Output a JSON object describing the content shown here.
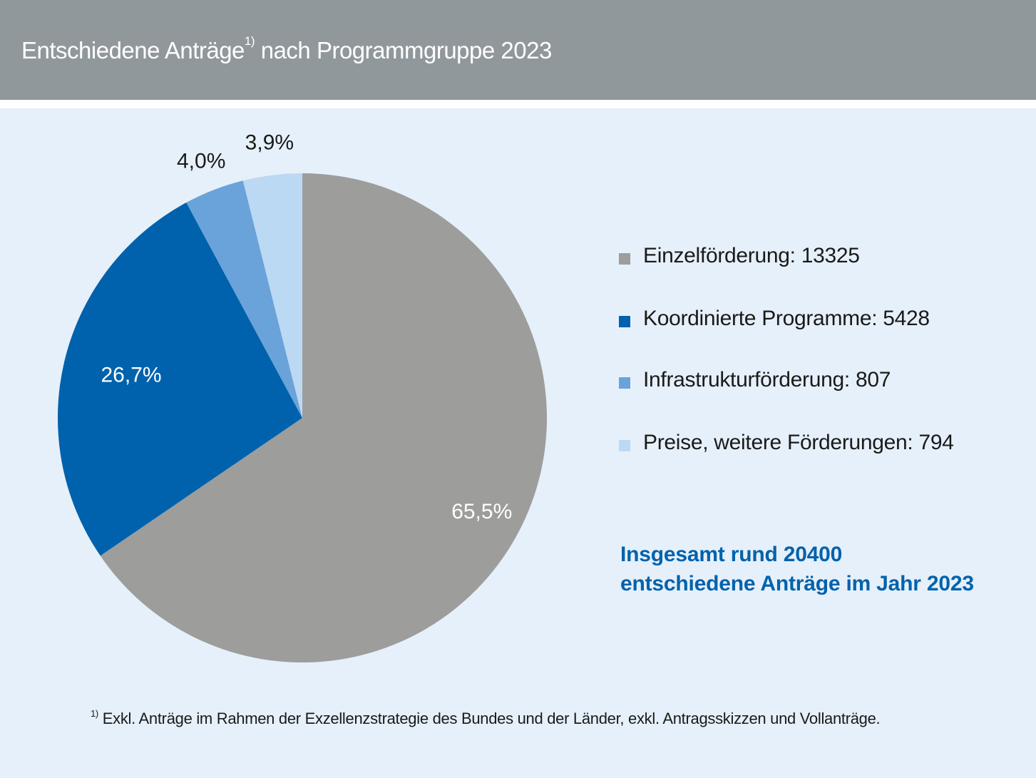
{
  "header": {
    "title_main": "Entschiedene Anträge",
    "title_sup": "1)",
    "title_rest": "nach Programmgruppe 2023"
  },
  "chart_data": {
    "type": "pie",
    "title": "Entschiedene Anträge 1) nach Programmgruppe 2023",
    "slices": [
      {
        "name": "Einzelförderung",
        "value": 13325,
        "percent": 65.5,
        "percent_label": "65,5%",
        "color": "#9d9d9c"
      },
      {
        "name": "Koordinierte Programme",
        "value": 5428,
        "percent": 26.7,
        "percent_label": "26,7%",
        "color": "#0062ac"
      },
      {
        "name": "Infrastrukturförderung",
        "value": 807,
        "percent": 4.0,
        "percent_label": "4,0%",
        "color": "#6aa3d9"
      },
      {
        "name": "Preise, weitere Förderungen",
        "value": 794,
        "percent": 3.9,
        "percent_label": "3,9%",
        "color": "#bcd9f4"
      }
    ],
    "legend_position": "right"
  },
  "legend": {
    "items": [
      {
        "label": "Einzelförderung: 13325",
        "color": "#9d9d9c"
      },
      {
        "label": "Koordinierte Programme: 5428",
        "color": "#0062ac"
      },
      {
        "label": "Infrastrukturförderung: 807",
        "color": "#6aa3d9"
      },
      {
        "label": "Preise, weitere Förderungen: 794",
        "color": "#bcd9f4"
      }
    ]
  },
  "summary": {
    "line1": "Insgesamt rund 20400",
    "line2": "entschiedene Anträge im Jahr 2023"
  },
  "footnote": {
    "sup": "1)",
    "text": "Exkl. Anträge im Rahmen der Exzellenzstrategie des Bundes und der Länder, exkl. Antragsskizzen und Vollanträge."
  }
}
